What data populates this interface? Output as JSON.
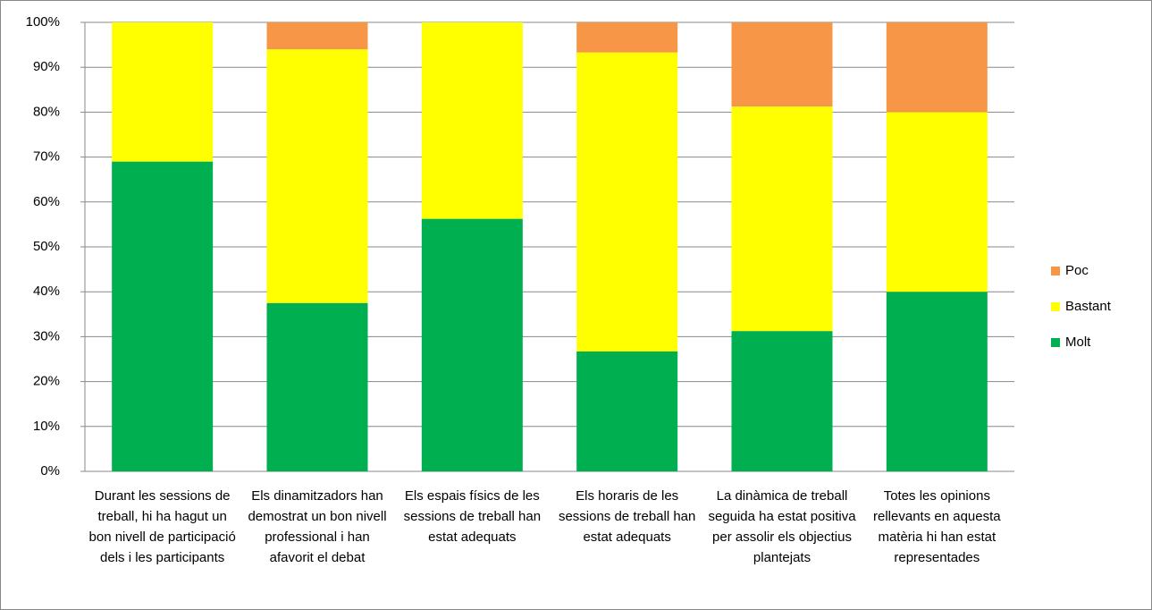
{
  "chart_data": {
    "type": "stacked_bar",
    "categories": [
      "Durant les sessions de treball, hi ha hagut un bon nivell de participació dels i les participants",
      "Els dinamitzadors han demostrat un bon nivell professional i han afavorit el debat",
      "Els espais físics de les sessions de treball han estat adequats",
      "Els horaris de les sessions de treball han estat adequats",
      "La dinàmica de treball seguida ha estat positiva per assolir els objectius plantejats",
      "Totes les opinions rellevants en aquesta matèria hi han estat representades"
    ],
    "series": [
      {
        "name": "Molt",
        "color": "#00b050",
        "values": [
          69,
          37.5,
          56.25,
          26.7,
          31.25,
          40
        ]
      },
      {
        "name": "Bastant",
        "color": "#ffff00",
        "values": [
          31,
          56.5,
          43.75,
          66.6,
          50,
          40
        ]
      },
      {
        "name": "Poc",
        "color": "#f79646",
        "values": [
          0,
          6,
          0,
          6.7,
          18.75,
          20
        ]
      }
    ],
    "ylim": [
      0,
      100
    ],
    "yticks": [
      {
        "value": 0,
        "label": "0%"
      },
      {
        "value": 10,
        "label": "10%"
      },
      {
        "value": 20,
        "label": "20%"
      },
      {
        "value": 30,
        "label": "30%"
      },
      {
        "value": 40,
        "label": "40%"
      },
      {
        "value": 50,
        "label": "50%"
      },
      {
        "value": 60,
        "label": "60%"
      },
      {
        "value": 70,
        "label": "70%"
      },
      {
        "value": 80,
        "label": "80%"
      },
      {
        "value": 90,
        "label": "90%"
      },
      {
        "value": 100,
        "label": "100%"
      }
    ],
    "grid": true,
    "legend": "right"
  }
}
